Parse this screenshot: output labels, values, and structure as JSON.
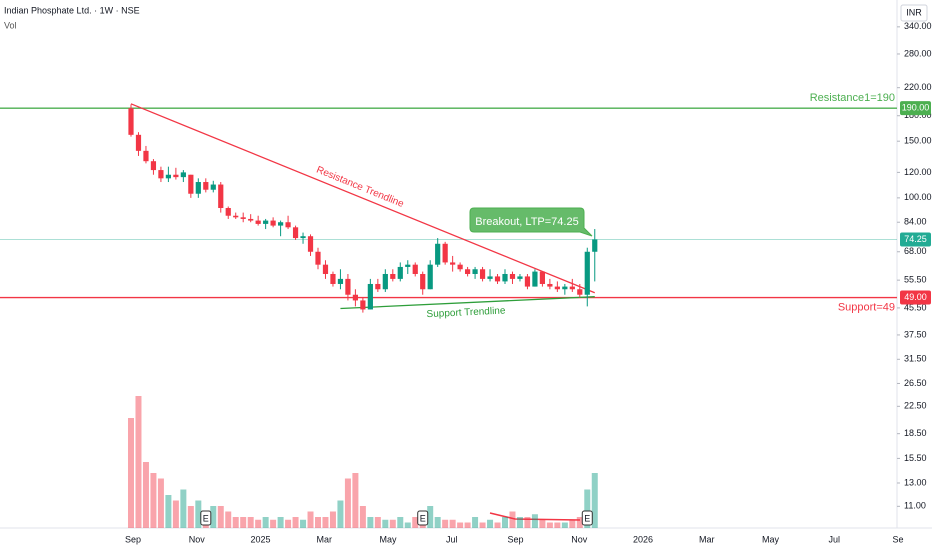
{
  "chart_data": {
    "type": "candlestick",
    "title": "Indian Phosphate Ltd. · 1W · NSE",
    "subtitle": "Vol",
    "currency": "INR",
    "log_scale": true,
    "ylim": [
      9.42,
      412
    ],
    "yticks": [
      {
        "value": 340,
        "label": "340.00"
      },
      {
        "value": 280,
        "label": "280.00"
      },
      {
        "value": 220,
        "label": "220.00"
      },
      {
        "value": 180,
        "label": "180.00"
      },
      {
        "value": 150,
        "label": "150.00"
      },
      {
        "value": 120,
        "label": "120.00"
      },
      {
        "value": 100,
        "label": "100.00"
      },
      {
        "value": 84,
        "label": "84.00"
      },
      {
        "value": 68,
        "label": "68.00"
      },
      {
        "value": 55.5,
        "label": "55.50"
      },
      {
        "value": 45.5,
        "label": "45.50"
      },
      {
        "value": 37.5,
        "label": "37.50"
      },
      {
        "value": 31.5,
        "label": "31.50"
      },
      {
        "value": 26.5,
        "label": "26.50"
      },
      {
        "value": 22.5,
        "label": "22.50"
      },
      {
        "value": 18.5,
        "label": "18.50"
      },
      {
        "value": 15.5,
        "label": "15.50"
      },
      {
        "value": 13,
        "label": "13.00"
      },
      {
        "value": 11,
        "label": "11.00"
      }
    ],
    "categories": [
      "Sep",
      "Nov",
      "2025",
      "Mar",
      "May",
      "Jul",
      "Sep",
      "Nov",
      "2026",
      "Mar",
      "May",
      "Jul",
      "Se"
    ],
    "up_color": "#089981",
    "down_color": "#f23645",
    "open": [
      190,
      157,
      140,
      130,
      122,
      115,
      118,
      116,
      118,
      103,
      112,
      106,
      110,
      93,
      88,
      87,
      86,
      85,
      83,
      85,
      82,
      84,
      81,
      75,
      76,
      68,
      62,
      58,
      54,
      56,
      50,
      48,
      45,
      54,
      52,
      58,
      56,
      61,
      62,
      58,
      52,
      62,
      72,
      63,
      62,
      60,
      58,
      60,
      56,
      57,
      55,
      58,
      56,
      57,
      53,
      59,
      54,
      53,
      52,
      53,
      52,
      50,
      68
    ],
    "high": [
      195,
      160,
      145,
      132,
      125,
      125,
      124,
      122,
      118,
      115,
      115,
      113,
      112,
      94,
      90,
      90,
      89,
      88,
      86,
      87,
      85,
      88,
      82,
      78,
      77,
      70,
      64,
      59,
      60,
      58,
      52,
      49,
      56,
      56,
      60,
      60,
      63,
      64,
      63,
      59,
      64,
      75,
      73,
      66,
      63,
      61,
      61,
      61,
      60,
      58,
      60,
      59,
      58,
      58,
      60,
      59,
      56,
      55,
      54,
      56,
      54,
      70,
      80
    ],
    "low": [
      155,
      135,
      128,
      118,
      112,
      112,
      114,
      112,
      100,
      100,
      104,
      104,
      90,
      86,
      86,
      84,
      84,
      82,
      80,
      81,
      76,
      80,
      74,
      72,
      66,
      60,
      56,
      53,
      52,
      48,
      46,
      44,
      45,
      51,
      51,
      55,
      55,
      58,
      57,
      50,
      52,
      61,
      62,
      59,
      59,
      57,
      56,
      55,
      55,
      54,
      54,
      54,
      55,
      52,
      53,
      53,
      52,
      51,
      50,
      51,
      49,
      46,
      55
    ],
    "close": [
      157,
      140,
      130,
      122,
      115,
      118,
      116,
      120,
      103,
      112,
      106,
      110,
      93,
      88,
      87,
      86,
      85,
      83,
      85,
      82,
      84,
      81,
      75,
      76,
      68,
      62,
      58,
      54,
      56,
      50,
      48,
      45,
      54,
      52,
      58,
      56,
      61,
      62,
      58,
      52,
      62,
      72,
      63,
      62,
      60,
      58,
      60,
      56,
      57,
      55,
      58,
      56,
      57,
      53,
      59,
      54,
      53,
      52,
      53,
      52,
      50,
      68,
      74.25
    ],
    "volume": [
      20,
      24,
      12,
      10,
      9,
      6,
      5,
      7,
      4,
      5,
      3,
      4,
      4,
      3,
      2,
      2,
      2,
      1.5,
      2,
      1.5,
      2,
      1.5,
      2,
      1.5,
      3,
      2,
      2,
      3,
      5,
      9,
      10,
      4,
      2,
      2,
      1.5,
      1.5,
      2,
      1,
      2,
      2,
      4,
      2,
      1.5,
      1.5,
      1,
      1,
      2,
      1,
      1.5,
      1,
      2,
      3,
      2,
      2,
      2.5,
      1.5,
      1,
      1,
      1,
      1.5,
      2,
      7,
      10
    ],
    "earnings": [
      "E",
      "E",
      "E"
    ],
    "levels": [
      {
        "name": "Resistance1=190",
        "value": 190,
        "axis_label": "190.00",
        "color": "#4caf50"
      },
      {
        "name": "Support=49",
        "value": 49,
        "axis_label": "49.00",
        "color": "#f23645"
      }
    ],
    "last_price": {
      "value": 74.25,
      "axis_label": "74.25",
      "callout": "Breakout, LTP=74.25",
      "color": "#22ab94"
    },
    "trendlines": [
      {
        "name": "Resistance Trendline",
        "start": 196,
        "end": 50.7,
        "color": "#f23645"
      },
      {
        "name": "Support Trendline",
        "start": 45.3,
        "end": 49.3,
        "color": "#2e9e3a"
      }
    ]
  }
}
